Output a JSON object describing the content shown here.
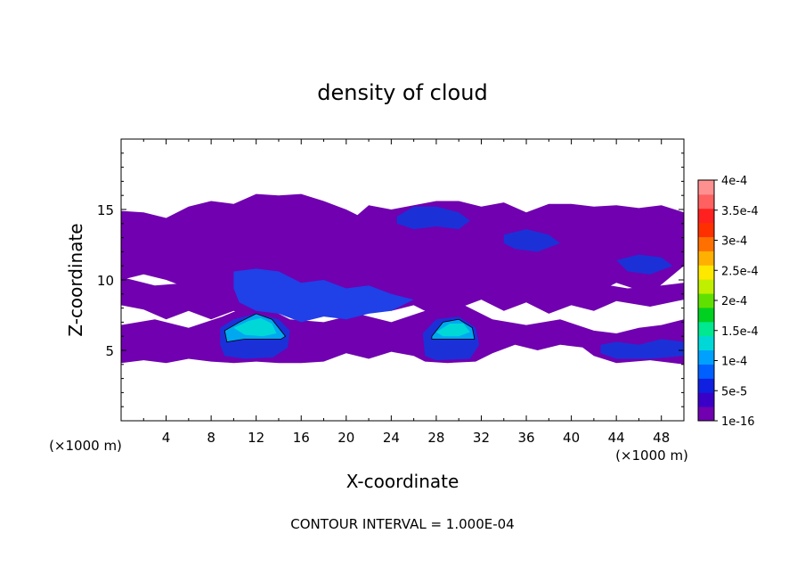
{
  "chart_data": {
    "type": "heatmap",
    "title": "density of cloud",
    "xlabel": "X-coordinate",
    "ylabel": "Z-coordinate",
    "x_unit": "(×1000 m)",
    "x_unit_right": "(×1000 m)",
    "xlim": [
      0,
      50
    ],
    "ylim": [
      0,
      20
    ],
    "x_ticks": [
      4,
      8,
      12,
      16,
      20,
      24,
      28,
      32,
      36,
      40,
      44,
      48
    ],
    "y_ticks": [
      5,
      10,
      15
    ],
    "footer": "CONTOUR INTERVAL = 1.000E-04",
    "colorbar": {
      "labels": [
        "1e-16",
        "5e-5",
        "1e-4",
        "1.5e-4",
        "2e-4",
        "2.5e-4",
        "3e-4",
        "3.5e-4",
        "4e-4"
      ],
      "colors": [
        "#7000b0",
        "#3a00c8",
        "#1020e0",
        "#0060ff",
        "#00a0ff",
        "#00d8d8",
        "#00e890",
        "#00d020",
        "#60e000",
        "#c0f000",
        "#ffe800",
        "#ffb000",
        "#ff7000",
        "#ff3000",
        "#ff2020",
        "#ff6060",
        "#ff9090"
      ]
    },
    "regions": [
      {
        "level": 1e-16,
        "color": "#7000b0",
        "desc": "upper cloud layer",
        "polygon": [
          [
            0,
            14.9
          ],
          [
            2,
            14.8
          ],
          [
            4,
            14.4
          ],
          [
            6,
            15.2
          ],
          [
            8,
            15.6
          ],
          [
            10,
            15.4
          ],
          [
            12,
            16.1
          ],
          [
            14,
            16.0
          ],
          [
            16,
            16.1
          ],
          [
            18,
            15.6
          ],
          [
            20,
            15.0
          ],
          [
            21,
            14.6
          ],
          [
            22,
            15.3
          ],
          [
            24,
            15.0
          ],
          [
            26,
            15.3
          ],
          [
            28,
            15.6
          ],
          [
            30,
            15.6
          ],
          [
            32,
            15.2
          ],
          [
            34,
            15.5
          ],
          [
            36,
            14.8
          ],
          [
            38,
            15.4
          ],
          [
            40,
            15.4
          ],
          [
            42,
            15.2
          ],
          [
            44,
            15.3
          ],
          [
            46,
            15.1
          ],
          [
            48,
            15.3
          ],
          [
            50,
            14.8
          ],
          [
            50,
            11.0
          ],
          [
            47,
            9.0
          ],
          [
            44,
            9.8
          ],
          [
            42,
            9.0
          ],
          [
            40,
            9.6
          ],
          [
            38,
            9.0
          ],
          [
            36,
            9.8
          ],
          [
            34,
            9.0
          ],
          [
            32,
            9.2
          ],
          [
            30,
            8.8
          ],
          [
            28,
            9.6
          ],
          [
            26,
            9.0
          ],
          [
            24,
            9.8
          ],
          [
            22,
            9.2
          ],
          [
            20,
            9.4
          ],
          [
            18,
            9.0
          ],
          [
            16,
            9.2
          ],
          [
            14,
            9.6
          ],
          [
            12,
            9.0
          ],
          [
            10,
            9.4
          ],
          [
            8,
            9.0
          ],
          [
            6,
            9.4
          ],
          [
            4,
            10.0
          ],
          [
            2,
            10.4
          ],
          [
            0,
            10.0
          ]
        ]
      },
      {
        "level": 1e-16,
        "color": "#7000b0",
        "desc": "mid cloud layer",
        "polygon": [
          [
            0,
            10.2
          ],
          [
            3,
            9.6
          ],
          [
            6,
            9.8
          ],
          [
            9,
            10.0
          ],
          [
            12,
            9.6
          ],
          [
            15,
            10.0
          ],
          [
            18,
            9.8
          ],
          [
            21,
            10.4
          ],
          [
            24,
            9.9
          ],
          [
            27,
            10.1
          ],
          [
            30,
            9.6
          ],
          [
            33,
            9.8
          ],
          [
            36,
            10.0
          ],
          [
            39,
            9.6
          ],
          [
            42,
            9.8
          ],
          [
            45,
            9.4
          ],
          [
            48,
            9.6
          ],
          [
            50,
            9.8
          ],
          [
            50,
            8.6
          ],
          [
            47,
            8.1
          ],
          [
            44,
            8.5
          ],
          [
            42,
            7.8
          ],
          [
            40,
            8.2
          ],
          [
            38,
            7.6
          ],
          [
            36,
            8.4
          ],
          [
            34,
            7.8
          ],
          [
            32,
            8.6
          ],
          [
            30,
            8.0
          ],
          [
            28,
            7.4
          ],
          [
            26,
            8.2
          ],
          [
            24,
            7.8
          ],
          [
            22,
            8.2
          ],
          [
            20,
            7.4
          ],
          [
            18,
            7.8
          ],
          [
            16,
            7.2
          ],
          [
            14,
            8.0
          ],
          [
            12,
            7.4
          ],
          [
            10,
            7.8
          ],
          [
            8,
            7.2
          ],
          [
            6,
            7.8
          ],
          [
            4,
            7.2
          ],
          [
            2,
            7.9
          ],
          [
            0,
            8.2
          ]
        ]
      },
      {
        "level": 1e-16,
        "color": "#7000b0",
        "desc": "lower cloud layer",
        "polygon": [
          [
            0,
            6.8
          ],
          [
            3,
            7.2
          ],
          [
            6,
            6.6
          ],
          [
            9,
            7.4
          ],
          [
            12,
            8.4
          ],
          [
            15,
            7.2
          ],
          [
            18,
            7.0
          ],
          [
            21,
            7.6
          ],
          [
            24,
            7.0
          ],
          [
            27,
            7.8
          ],
          [
            30,
            8.4
          ],
          [
            33,
            7.2
          ],
          [
            36,
            6.8
          ],
          [
            39,
            7.2
          ],
          [
            42,
            6.4
          ],
          [
            44,
            6.2
          ],
          [
            46,
            6.6
          ],
          [
            48,
            6.8
          ],
          [
            50,
            7.2
          ],
          [
            50,
            4.0
          ],
          [
            47,
            4.3
          ],
          [
            44,
            4.1
          ],
          [
            42,
            4.6
          ],
          [
            41,
            5.2
          ],
          [
            39,
            5.4
          ],
          [
            37,
            5.0
          ],
          [
            35,
            5.4
          ],
          [
            33,
            4.8
          ],
          [
            31.5,
            4.2
          ],
          [
            29,
            4.1
          ],
          [
            27,
            4.2
          ],
          [
            26,
            4.6
          ],
          [
            24,
            4.9
          ],
          [
            22,
            4.4
          ],
          [
            20,
            4.8
          ],
          [
            18,
            4.2
          ],
          [
            16,
            4.1
          ],
          [
            14,
            4.1
          ],
          [
            12,
            4.2
          ],
          [
            10,
            4.1
          ],
          [
            8,
            4.2
          ],
          [
            6,
            4.4
          ],
          [
            4,
            4.1
          ],
          [
            2,
            4.3
          ],
          [
            0,
            4.1
          ]
        ]
      },
      {
        "level": 5e-05,
        "color": "#1c30d8",
        "desc": "upper core 1",
        "polygon": [
          [
            24.5,
            14.5
          ],
          [
            26,
            15.2
          ],
          [
            28,
            15.2
          ],
          [
            30,
            14.8
          ],
          [
            31,
            14.2
          ],
          [
            30,
            13.6
          ],
          [
            28,
            13.8
          ],
          [
            26,
            13.6
          ],
          [
            24.5,
            14.0
          ]
        ]
      },
      {
        "level": 5e-05,
        "color": "#1c30d8",
        "desc": "upper core 2",
        "polygon": [
          [
            34,
            13.2
          ],
          [
            36,
            13.6
          ],
          [
            38,
            13.2
          ],
          [
            39,
            12.6
          ],
          [
            37,
            12.0
          ],
          [
            35,
            12.2
          ],
          [
            34,
            12.6
          ]
        ]
      },
      {
        "level": 5e-05,
        "color": "#1c30d8",
        "desc": "upper core 3",
        "polygon": [
          [
            44,
            11.4
          ],
          [
            46,
            11.8
          ],
          [
            48,
            11.6
          ],
          [
            49,
            11.0
          ],
          [
            47,
            10.4
          ],
          [
            45,
            10.6
          ]
        ]
      },
      {
        "level": 5e-05,
        "color": "#2040e8",
        "desc": "mid core",
        "polygon": [
          [
            10,
            10.6
          ],
          [
            12,
            10.8
          ],
          [
            14,
            10.6
          ],
          [
            16,
            9.8
          ],
          [
            18,
            10.0
          ],
          [
            20,
            9.4
          ],
          [
            22,
            9.6
          ],
          [
            24,
            9.0
          ],
          [
            26,
            8.6
          ],
          [
            24,
            7.8
          ],
          [
            22,
            7.6
          ],
          [
            20,
            7.2
          ],
          [
            18,
            7.4
          ],
          [
            16,
            7.0
          ],
          [
            14,
            7.6
          ],
          [
            12,
            7.8
          ],
          [
            10.5,
            8.4
          ],
          [
            10,
            9.4
          ]
        ]
      },
      {
        "level": 5e-05,
        "color": "#1c30d8",
        "desc": "low core left",
        "polygon": [
          [
            8.8,
            6.6
          ],
          [
            10,
            7.2
          ],
          [
            12,
            7.6
          ],
          [
            14,
            7.2
          ],
          [
            15,
            6.4
          ],
          [
            14.8,
            5.2
          ],
          [
            13.5,
            4.5
          ],
          [
            11,
            4.4
          ],
          [
            9.2,
            4.6
          ],
          [
            8.8,
            5.4
          ]
        ]
      },
      {
        "level": 5e-05,
        "color": "#1c30d8",
        "desc": "low core right",
        "polygon": [
          [
            26.8,
            6.2
          ],
          [
            28,
            7.2
          ],
          [
            30,
            7.4
          ],
          [
            31.5,
            6.6
          ],
          [
            31.8,
            5.4
          ],
          [
            31,
            4.4
          ],
          [
            28,
            4.3
          ],
          [
            27,
            4.6
          ]
        ]
      },
      {
        "level": 5e-05,
        "color": "#1c30d8",
        "desc": "low core far right",
        "polygon": [
          [
            42.6,
            5.4
          ],
          [
            44,
            5.6
          ],
          [
            46,
            5.4
          ],
          [
            48,
            5.8
          ],
          [
            50,
            5.6
          ],
          [
            50,
            4.6
          ],
          [
            47,
            4.4
          ],
          [
            44,
            4.4
          ],
          [
            42.6,
            4.8
          ]
        ]
      },
      {
        "level": 0.0001,
        "color": "#00a8f0",
        "desc": "cell left",
        "polygon": [
          [
            9.2,
            6.4
          ],
          [
            10.5,
            7.0
          ],
          [
            12,
            7.6
          ],
          [
            13.4,
            7.2
          ],
          [
            14.6,
            6.0
          ],
          [
            14.2,
            5.8
          ],
          [
            12.8,
            5.8
          ],
          [
            11,
            5.8
          ],
          [
            9.4,
            5.6
          ]
        ]
      },
      {
        "level": 0.0001,
        "color": "#00a8f0",
        "desc": "cell right",
        "polygon": [
          [
            27.6,
            6.0
          ],
          [
            28.6,
            7.0
          ],
          [
            30,
            7.2
          ],
          [
            31.2,
            6.6
          ],
          [
            31.4,
            5.8
          ],
          [
            30,
            5.8
          ],
          [
            28.4,
            5.8
          ],
          [
            27.6,
            5.8
          ]
        ]
      },
      {
        "level": 0.00015,
        "color": "#00d8d8",
        "desc": "cell left top",
        "polygon": [
          [
            10,
            6.6
          ],
          [
            11.4,
            7.1
          ],
          [
            12.4,
            7.3
          ],
          [
            13.4,
            6.9
          ],
          [
            13.8,
            6.2
          ],
          [
            12.6,
            6.0
          ],
          [
            11,
            6.1
          ]
        ]
      },
      {
        "level": 0.00015,
        "color": "#00d8d8",
        "desc": "cell right top",
        "polygon": [
          [
            28,
            6.3
          ],
          [
            29.2,
            6.9
          ],
          [
            30.4,
            6.9
          ],
          [
            31,
            6.3
          ],
          [
            30,
            6.0
          ],
          [
            28.6,
            6.0
          ]
        ]
      }
    ]
  }
}
